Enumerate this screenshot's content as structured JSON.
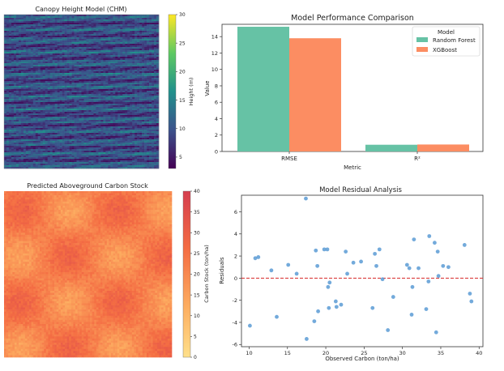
{
  "chart_data": [
    {
      "type": "heatmap",
      "title": "Canopy Height Model (CHM)",
      "colormap": "viridis",
      "colorbar": {
        "label": "Height (m)",
        "range": [
          3,
          30
        ],
        "ticks": [
          5,
          10,
          15,
          20,
          25,
          30
        ]
      },
      "pattern": "horizontal streaks, mostly 5–15 m"
    },
    {
      "type": "bar",
      "title": "Model Performance Comparison",
      "xlabel": "Metric",
      "ylabel": "Value",
      "categories": [
        "RMSE",
        "R²"
      ],
      "ylim": [
        0,
        15.5
      ],
      "yticks": [
        0,
        2,
        4,
        6,
        8,
        10,
        12,
        14
      ],
      "legend": {
        "title": "Model",
        "position": "top-right"
      },
      "series": [
        {
          "name": "Random Forest",
          "color": "#66c2a5",
          "values": [
            15.2,
            0.82
          ]
        },
        {
          "name": "XGBoost",
          "color": "#fc8d62",
          "values": [
            13.8,
            0.85
          ]
        }
      ]
    },
    {
      "type": "heatmap",
      "title": "Predicted Aboveground Carbon Stock",
      "colormap": "Spectral_r (yellow to red)",
      "colorbar": {
        "label": "Carbon Stock (ton/ha)",
        "range": [
          0,
          40
        ],
        "ticks": [
          0,
          5,
          10,
          15,
          20,
          25,
          30,
          35,
          40
        ]
      },
      "pattern": "smooth periodic blobs, mostly 15–30 ton/ha"
    },
    {
      "type": "scatter",
      "title": "Model Residual Analysis",
      "xlabel": "Observed Carbon (ton/ha)",
      "ylabel": "Residuals",
      "xlim": [
        9,
        40.5
      ],
      "ylim": [
        -6.2,
        7.5
      ],
      "xticks": [
        10,
        15,
        20,
        25,
        30,
        35,
        40
      ],
      "yticks": [
        -6,
        -4,
        -2,
        0,
        2,
        4,
        6
      ],
      "reference_line": {
        "y": 0,
        "color": "#d62728",
        "style": "dashed"
      },
      "point_color": "#5b9bd5",
      "points": [
        [
          10.1,
          -4.3
        ],
        [
          10.8,
          1.8
        ],
        [
          11.2,
          1.9
        ],
        [
          12.9,
          0.7
        ],
        [
          13.6,
          -3.5
        ],
        [
          15.1,
          1.2
        ],
        [
          16.2,
          0.4
        ],
        [
          17.4,
          7.2
        ],
        [
          17.5,
          -5.5
        ],
        [
          18.5,
          -3.9
        ],
        [
          18.7,
          2.5
        ],
        [
          18.9,
          1.1
        ],
        [
          19.0,
          -3.0
        ],
        [
          19.8,
          2.6
        ],
        [
          20.2,
          2.6
        ],
        [
          20.3,
          -0.8
        ],
        [
          20.5,
          -0.4
        ],
        [
          20.4,
          -2.7
        ],
        [
          21.3,
          -2.1
        ],
        [
          21.4,
          -2.6
        ],
        [
          22.0,
          -2.4
        ],
        [
          22.6,
          2.4
        ],
        [
          22.8,
          0.4
        ],
        [
          23.6,
          1.4
        ],
        [
          24.6,
          1.5
        ],
        [
          26.1,
          -2.7
        ],
        [
          26.4,
          2.2
        ],
        [
          26.6,
          1.1
        ],
        [
          27.0,
          2.6
        ],
        [
          27.4,
          -0.1
        ],
        [
          28.1,
          -4.7
        ],
        [
          28.8,
          -1.7
        ],
        [
          30.6,
          1.2
        ],
        [
          30.9,
          0.9
        ],
        [
          31.2,
          -3.3
        ],
        [
          31.3,
          -0.8
        ],
        [
          31.5,
          3.5
        ],
        [
          32.1,
          0.9
        ],
        [
          33.1,
          -2.8
        ],
        [
          33.4,
          -0.3
        ],
        [
          33.5,
          3.8
        ],
        [
          34.2,
          3.2
        ],
        [
          34.4,
          -4.9
        ],
        [
          34.6,
          2.4
        ],
        [
          34.7,
          0.2
        ],
        [
          35.3,
          1.1
        ],
        [
          36.0,
          1.0
        ],
        [
          38.1,
          3.0
        ],
        [
          38.8,
          -1.4
        ],
        [
          39.0,
          -2.1
        ]
      ]
    }
  ]
}
